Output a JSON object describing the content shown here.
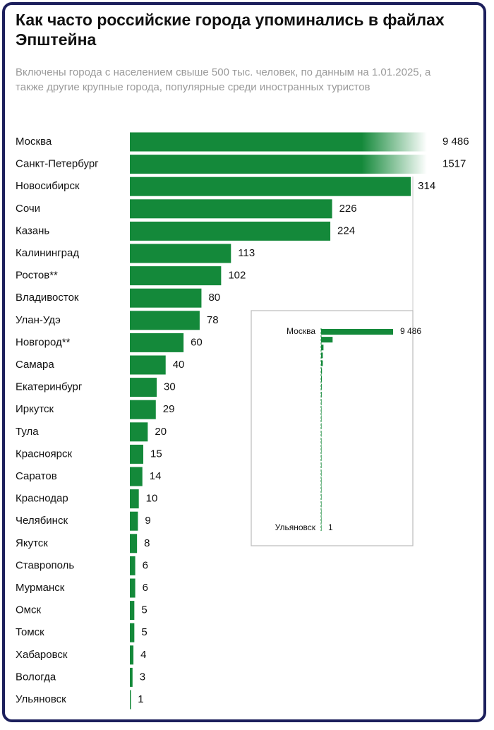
{
  "chart_data": {
    "type": "bar",
    "orientation": "horizontal",
    "title": "Как часто российские города упоминались в файлах Эпштейна",
    "subtitle": "Включены города с населением свыше 500 тыс. человек, по данным на 1.01.2025, а также другие крупные города, популярные среди иностранных туристов",
    "categories": [
      "Москва",
      "Санкт-Петербург",
      "Новосибирск",
      "Сочи",
      "Казань",
      "Калининград",
      "Ростов**",
      "Владивосток",
      "Улан-Удэ",
      "Новгород**",
      "Самара",
      "Екатеринбург",
      "Иркутск",
      "Тула",
      "Красноярск",
      "Саратов",
      "Краснодар",
      "Челябинск",
      "Якутск",
      "Ставрополь",
      "Мурманск",
      "Омск",
      "Томск",
      "Хабаровск",
      "Вологда",
      "Ульяновск"
    ],
    "values": [
      9486,
      1517,
      314,
      226,
      224,
      113,
      102,
      80,
      78,
      60,
      40,
      30,
      29,
      20,
      15,
      14,
      10,
      9,
      8,
      6,
      6,
      5,
      5,
      4,
      3,
      1
    ],
    "value_labels": [
      "9 486",
      "1517",
      "314",
      "226",
      "224",
      "113",
      "102",
      "80",
      "78",
      "60",
      "40",
      "30",
      "29",
      "20",
      "15",
      "14",
      "10",
      "9",
      "8",
      "6",
      "6",
      "5",
      "5",
      "4",
      "3",
      "1"
    ],
    "color": "#14893a",
    "xlim": [
      0,
      332
    ]
  }
}
